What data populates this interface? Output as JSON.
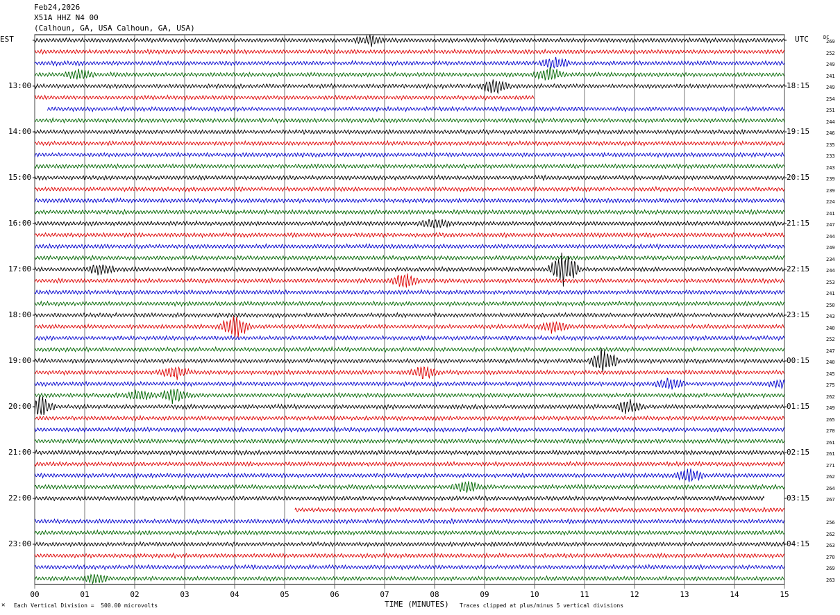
{
  "header": {
    "date": "Feb24,2026",
    "station": "X51A HHZ N4 00",
    "location": "(Calhoun, GA, USA Calhoun, GA, USA)"
  },
  "left_tz": "EST",
  "right_tz": "UTC",
  "dc_label": "DC",
  "left_hours": [
    "13:00",
    "14:00",
    "15:00",
    "16:00",
    "17:00",
    "18:00",
    "19:00",
    "20:00",
    "21:00",
    "22:00",
    "23:00"
  ],
  "right_hours": [
    "18:15",
    "19:15",
    "20:15",
    "21:15",
    "22:15",
    "23:15",
    "00:15",
    "01:15",
    "02:15",
    "03:15",
    "04:15"
  ],
  "x_ticks": [
    "00",
    "01",
    "02",
    "03",
    "04",
    "05",
    "06",
    "07",
    "08",
    "09",
    "10",
    "11",
    "12",
    "13",
    "14",
    "15"
  ],
  "xlabel": "TIME (MINUTES)",
  "footer_left": "Each Vertical Division =  500.00 microvolts",
  "footer_right": "Traces clipped at plus/minus 5 vertical divisions",
  "dc_values": [
    "269",
    "252",
    "249",
    "241",
    "249",
    "254",
    "251",
    "244",
    "246",
    "235",
    "233",
    "243",
    "239",
    "239",
    "224",
    "241",
    "247",
    "244",
    "249",
    "234",
    "244",
    "253",
    "241",
    "250",
    "243",
    "240",
    "252",
    "247",
    "240",
    "245",
    "275",
    "262",
    "249",
    "265",
    "270",
    "261",
    "261",
    "271",
    "262",
    "264",
    "267",
    "",
    "256",
    "262",
    "263",
    "270",
    "269",
    "263"
  ],
  "colors": [
    "#000000",
    "#dd0000",
    "#0000cc",
    "#006600"
  ],
  "trace_count": 48,
  "events": [
    [
      0,
      6.7,
      1.6
    ],
    [
      3,
      0.9,
      1.5
    ],
    [
      2,
      10.4,
      1.8
    ],
    [
      3,
      10.3,
      2.2
    ],
    [
      4,
      9.2,
      2.6
    ],
    [
      16,
      8.0,
      1.8
    ],
    [
      20,
      1.3,
      1.6
    ],
    [
      20,
      10.6,
      6.0
    ],
    [
      21,
      7.4,
      2.2
    ],
    [
      25,
      4.0,
      3.5
    ],
    [
      25,
      10.4,
      1.8
    ],
    [
      28,
      11.4,
      4.0
    ],
    [
      29,
      2.8,
      2.2
    ],
    [
      29,
      7.8,
      2.0
    ],
    [
      30,
      12.7,
      1.8
    ],
    [
      30,
      15.0,
      1.5
    ],
    [
      31,
      2.8,
      2.6
    ],
    [
      31,
      2.1,
      1.6
    ],
    [
      32,
      0.1,
      3.5
    ],
    [
      32,
      11.9,
      2.0
    ],
    [
      38,
      13.1,
      2.2
    ],
    [
      39,
      8.6,
      2.4
    ],
    [
      47,
      1.2,
      1.4
    ]
  ]
}
